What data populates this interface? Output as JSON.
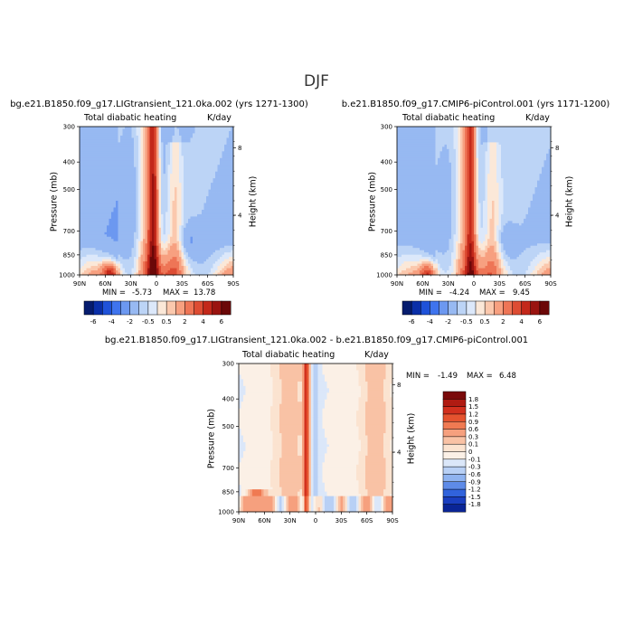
{
  "figure": {
    "season": "DJF"
  },
  "chart_data": [
    {
      "type": "heatmap",
      "panel": "top-left",
      "title": "bg.e21.B1850.f09_g17.LIGtransient_121.0ka.002 (yrs 1271-1300)",
      "subtitle_left": "Total diabatic heating",
      "subtitle_right": "K/day",
      "xlabel": "",
      "ylabel": "Pressure (mb)",
      "ylabel_right": "Height (km)",
      "x_ticks": [
        "90N",
        "60N",
        "30N",
        "0",
        "30S",
        "60S",
        "90S"
      ],
      "y_ticks": [
        "300",
        "400",
        "500",
        "700",
        "850",
        "1000"
      ],
      "y_right_ticks": [
        "8",
        "4"
      ],
      "min_label": "MIN =",
      "min_value": "-5.73",
      "max_label": "MAX =",
      "max_value": "13.78",
      "colorbar": {
        "levels": [
          "-6",
          "-4",
          "-2",
          "-0.5",
          "0.5",
          "2",
          "4",
          "6"
        ],
        "colors": [
          "#061c6e",
          "#0a2fa8",
          "#1f52d9",
          "#3f74ee",
          "#6c98f0",
          "#97b9f2",
          "#bcd4f6",
          "#dce8fa",
          "#fbe8d8",
          "#fbc8ad",
          "#f7a080",
          "#ee7556",
          "#dd4c33",
          "#c3281a",
          "#9a1410",
          "#6b0808"
        ]
      }
    },
    {
      "type": "heatmap",
      "panel": "top-right",
      "title": "b.e21.B1850.f09_g17.CMIP6-piControl.001 (yrs 1171-1200)",
      "subtitle_left": "Total diabatic heating",
      "subtitle_right": "K/day",
      "xlabel": "",
      "ylabel": "Pressure (mb)",
      "ylabel_right": "Height (km)",
      "x_ticks": [
        "90N",
        "60N",
        "30N",
        "0",
        "30S",
        "60S",
        "90S"
      ],
      "y_ticks": [
        "300",
        "400",
        "500",
        "700",
        "850",
        "1000"
      ],
      "y_right_ticks": [
        "8",
        "4"
      ],
      "min_label": "MIN =",
      "min_value": "-4.24",
      "max_label": "MAX =",
      "max_value": "9.45",
      "colorbar": {
        "levels": [
          "-6",
          "-4",
          "-2",
          "-0.5",
          "0.5",
          "2",
          "4",
          "6"
        ],
        "colors": [
          "#061c6e",
          "#0a2fa8",
          "#1f52d9",
          "#3f74ee",
          "#6c98f0",
          "#97b9f2",
          "#bcd4f6",
          "#dce8fa",
          "#fbe8d8",
          "#fbc8ad",
          "#f7a080",
          "#ee7556",
          "#dd4c33",
          "#c3281a",
          "#9a1410",
          "#6b0808"
        ]
      }
    },
    {
      "type": "heatmap",
      "panel": "bottom",
      "title": "bg.e21.B1850.f09_g17.LIGtransient_121.0ka.002 - b.e21.B1850.f09_g17.CMIP6-piControl.001",
      "subtitle_left": "Total diabatic heating",
      "subtitle_right": "K/day",
      "xlabel": "",
      "ylabel": "Pressure (mb)",
      "ylabel_right": "Height (km)",
      "x_ticks": [
        "90N",
        "60N",
        "30N",
        "0",
        "30S",
        "60S",
        "90S"
      ],
      "y_ticks": [
        "300",
        "400",
        "500",
        "700",
        "850",
        "1000"
      ],
      "y_right_ticks": [
        "8",
        "4"
      ],
      "min_label": "MIN =",
      "min_value": "-1.49",
      "max_label": "MAX =",
      "max_value": "6.48",
      "colorbar": {
        "levels": [
          "1.8",
          "1.5",
          "1.2",
          "0.9",
          "0.6",
          "0.3",
          "0.1",
          "0",
          "-0.1",
          "-0.3",
          "-0.6",
          "-0.9",
          "-1.2",
          "-1.5",
          "-1.8"
        ],
        "colors": [
          "#7a0a0a",
          "#b01b12",
          "#d2301e",
          "#e5532f",
          "#f07a52",
          "#f6a07e",
          "#f9c2a5",
          "#fbe3d0",
          "#fbf0e6",
          "#dbe7f9",
          "#b8d0f5",
          "#8fb3f0",
          "#5e8be8",
          "#3163dc",
          "#1a3fc0",
          "#0a2596"
        ]
      }
    }
  ]
}
